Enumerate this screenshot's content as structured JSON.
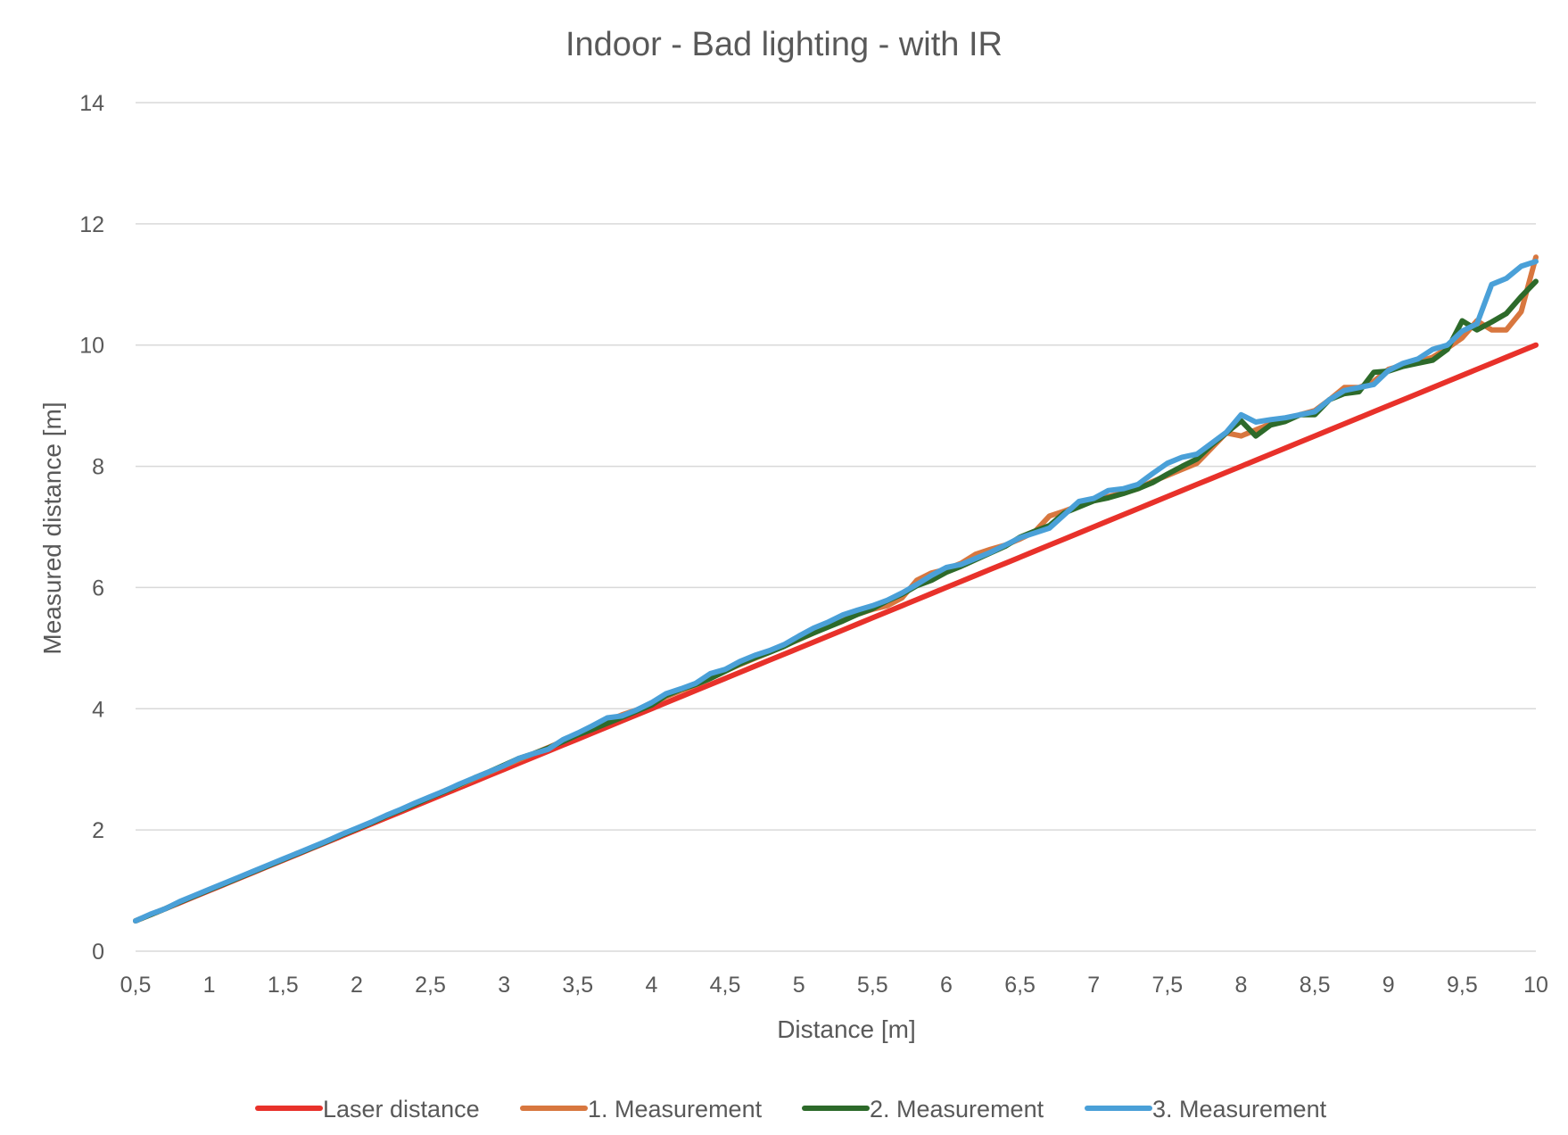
{
  "chart_data": {
    "type": "line",
    "title": "Indoor - Bad lighting - with IR",
    "xlabel": "Distance [m]",
    "ylabel": "Measured distance [m]",
    "xlim": [
      0.5,
      10
    ],
    "ylim": [
      0,
      14
    ],
    "x_tick_labels": [
      "0,5",
      "1",
      "1,5",
      "2",
      "2,5",
      "3",
      "3,5",
      "4",
      "4,5",
      "5",
      "5,5",
      "6",
      "6,5",
      "7",
      "7,5",
      "8",
      "8,5",
      "9",
      "9,5",
      "10"
    ],
    "y_tick_labels": [
      "0",
      "2",
      "4",
      "6",
      "8",
      "10",
      "12",
      "14"
    ],
    "grid": "horizontal",
    "legend_position": "bottom",
    "x": [
      0.5,
      0.6,
      0.7,
      0.8,
      0.9,
      1.0,
      1.1,
      1.2,
      1.3,
      1.4,
      1.5,
      1.6,
      1.7,
      1.8,
      1.9,
      2.0,
      2.1,
      2.2,
      2.3,
      2.4,
      2.5,
      2.6,
      2.7,
      2.8,
      2.9,
      3.0,
      3.1,
      3.2,
      3.3,
      3.4,
      3.5,
      3.6,
      3.7,
      3.8,
      3.9,
      4.0,
      4.1,
      4.2,
      4.3,
      4.4,
      4.5,
      4.6,
      4.7,
      4.8,
      4.9,
      5.0,
      5.1,
      5.2,
      5.3,
      5.4,
      5.5,
      5.6,
      5.7,
      5.8,
      5.9,
      6.0,
      6.1,
      6.2,
      6.3,
      6.4,
      6.5,
      6.6,
      6.7,
      6.8,
      6.9,
      7.0,
      7.1,
      7.2,
      7.3,
      7.4,
      7.5,
      7.6,
      7.7,
      7.8,
      7.9,
      8.0,
      8.1,
      8.2,
      8.3,
      8.4,
      8.5,
      8.6,
      8.7,
      8.8,
      8.9,
      9.0,
      9.1,
      9.2,
      9.3,
      9.4,
      9.5,
      9.6,
      9.7,
      9.8,
      9.9,
      10.0
    ],
    "series": [
      {
        "name": "Laser distance",
        "color": "#e8312a",
        "values": [
          0.5,
          0.6,
          0.7,
          0.8,
          0.9,
          1.0,
          1.1,
          1.2,
          1.3,
          1.4,
          1.5,
          1.6,
          1.7,
          1.8,
          1.9,
          2.0,
          2.1,
          2.2,
          2.3,
          2.4,
          2.5,
          2.6,
          2.7,
          2.8,
          2.9,
          3.0,
          3.1,
          3.2,
          3.3,
          3.4,
          3.5,
          3.6,
          3.7,
          3.8,
          3.9,
          4.0,
          4.1,
          4.2,
          4.3,
          4.4,
          4.5,
          4.6,
          4.7,
          4.8,
          4.9,
          5.0,
          5.1,
          5.2,
          5.3,
          5.4,
          5.5,
          5.6,
          5.7,
          5.8,
          5.9,
          6.0,
          6.1,
          6.2,
          6.3,
          6.4,
          6.5,
          6.6,
          6.7,
          6.8,
          6.9,
          7.0,
          7.1,
          7.2,
          7.3,
          7.4,
          7.5,
          7.6,
          7.7,
          7.8,
          7.9,
          8.0,
          8.1,
          8.2,
          8.3,
          8.4,
          8.5,
          8.6,
          8.7,
          8.8,
          8.9,
          9.0,
          9.1,
          9.2,
          9.3,
          9.4,
          9.5,
          9.6,
          9.7,
          9.8,
          9.9,
          10.0
        ]
      },
      {
        "name": "1. Measurement",
        "color": "#d8773f",
        "values": [
          0.5,
          0.6,
          0.7,
          0.81,
          0.91,
          1.01,
          1.11,
          1.21,
          1.31,
          1.41,
          1.51,
          1.62,
          1.71,
          1.82,
          1.92,
          2.02,
          2.12,
          2.23,
          2.33,
          2.44,
          2.54,
          2.65,
          2.74,
          2.85,
          2.95,
          3.06,
          3.16,
          3.26,
          3.36,
          3.47,
          3.58,
          3.69,
          3.8,
          3.9,
          3.98,
          4.08,
          4.2,
          4.3,
          4.39,
          4.5,
          4.62,
          4.73,
          4.83,
          4.93,
          5.04,
          5.14,
          5.25,
          5.36,
          5.46,
          5.56,
          5.64,
          5.7,
          5.83,
          6.12,
          6.24,
          6.3,
          6.4,
          6.55,
          6.63,
          6.7,
          6.8,
          6.92,
          7.18,
          7.26,
          7.35,
          7.43,
          7.5,
          7.56,
          7.63,
          7.75,
          7.85,
          7.95,
          8.05,
          8.3,
          8.55,
          8.5,
          8.6,
          8.7,
          8.75,
          8.85,
          8.92,
          9.1,
          9.3,
          9.3,
          9.4,
          9.6,
          9.67,
          9.72,
          9.8,
          9.95,
          10.12,
          10.4,
          10.25,
          10.25,
          10.55,
          11.45
        ]
      },
      {
        "name": "2. Measurement",
        "color": "#2d6a2a",
        "values": [
          0.5,
          0.6,
          0.7,
          0.81,
          0.91,
          1.01,
          1.11,
          1.21,
          1.31,
          1.41,
          1.51,
          1.61,
          1.71,
          1.81,
          1.92,
          2.02,
          2.12,
          2.23,
          2.33,
          2.43,
          2.54,
          2.64,
          2.75,
          2.86,
          2.96,
          3.07,
          3.18,
          3.26,
          3.35,
          3.46,
          3.57,
          3.66,
          3.76,
          3.86,
          3.96,
          4.06,
          4.22,
          4.32,
          4.4,
          4.5,
          4.62,
          4.74,
          4.84,
          4.93,
          5.03,
          5.15,
          5.25,
          5.35,
          5.45,
          5.56,
          5.65,
          5.78,
          5.89,
          6.03,
          6.12,
          6.25,
          6.35,
          6.46,
          6.57,
          6.68,
          6.83,
          6.93,
          7.02,
          7.23,
          7.33,
          7.43,
          7.48,
          7.55,
          7.63,
          7.73,
          7.87,
          8.0,
          8.12,
          8.35,
          8.55,
          8.75,
          8.5,
          8.68,
          8.74,
          8.85,
          8.85,
          9.1,
          9.2,
          9.23,
          9.55,
          9.57,
          9.65,
          9.7,
          9.75,
          9.93,
          10.4,
          10.25,
          10.38,
          10.52,
          10.8,
          11.05
        ]
      },
      {
        "name": "3. Measurement",
        "color": "#4aa0d8",
        "values": [
          0.5,
          0.61,
          0.7,
          0.82,
          0.92,
          1.02,
          1.12,
          1.22,
          1.32,
          1.42,
          1.52,
          1.62,
          1.72,
          1.82,
          1.93,
          2.03,
          2.13,
          2.24,
          2.34,
          2.45,
          2.55,
          2.65,
          2.76,
          2.86,
          2.96,
          3.06,
          3.18,
          3.26,
          3.33,
          3.49,
          3.6,
          3.72,
          3.85,
          3.88,
          3.98,
          4.1,
          4.25,
          4.33,
          4.42,
          4.58,
          4.65,
          4.78,
          4.88,
          4.96,
          5.06,
          5.2,
          5.33,
          5.43,
          5.55,
          5.63,
          5.7,
          5.79,
          5.91,
          6.05,
          6.2,
          6.33,
          6.38,
          6.48,
          6.58,
          6.7,
          6.82,
          6.9,
          6.98,
          7.2,
          7.42,
          7.47,
          7.6,
          7.63,
          7.7,
          7.88,
          8.05,
          8.15,
          8.2,
          8.38,
          8.56,
          8.85,
          8.73,
          8.77,
          8.8,
          8.85,
          8.9,
          9.1,
          9.25,
          9.3,
          9.35,
          9.58,
          9.7,
          9.77,
          9.93,
          10.0,
          10.23,
          10.35,
          11.0,
          11.1,
          11.3,
          11.38
        ]
      }
    ]
  }
}
